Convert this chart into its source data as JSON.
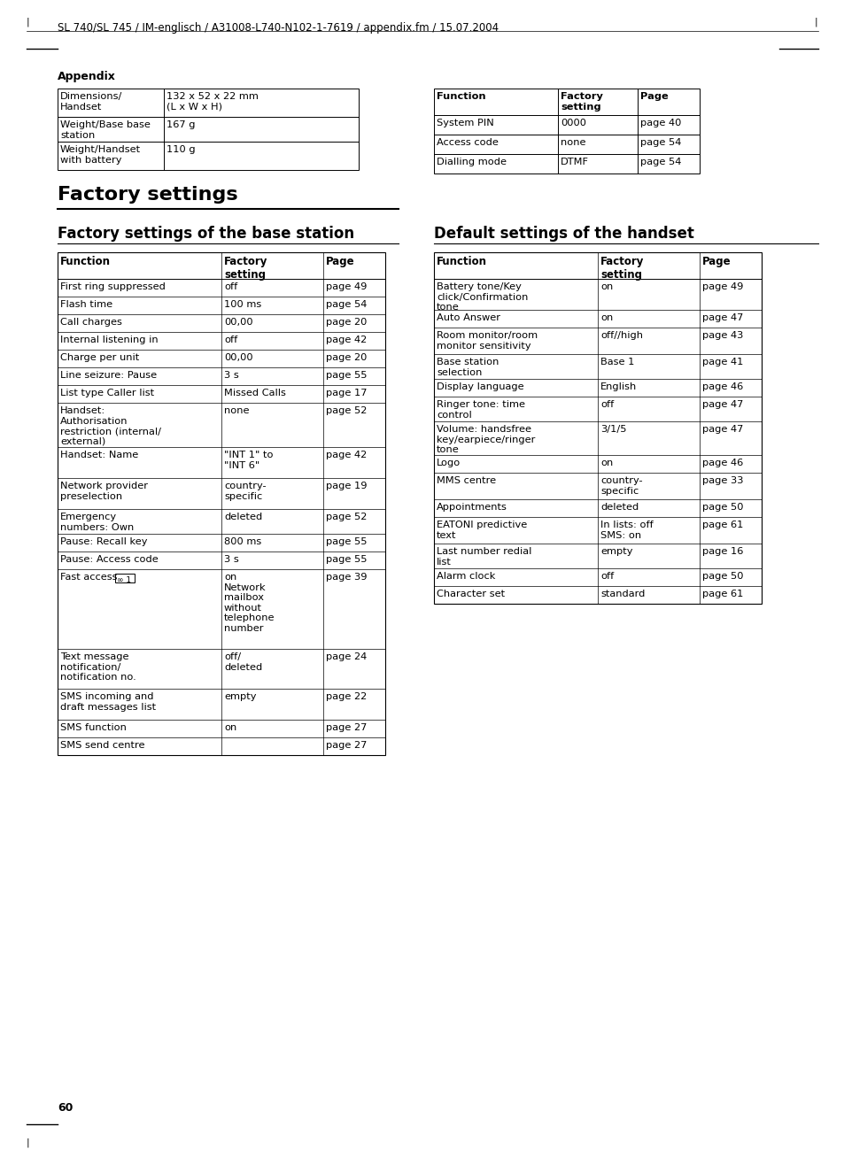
{
  "header_text": "SL 740/SL 745 / IM-englisch / A31008-L740-N102-1-7619 / appendix.fm / 15.07.2004",
  "section_label": "Appendix",
  "main_title": "Factory settings",
  "subtitle1": "Factory settings of the base station",
  "subtitle2": "Default settings of the handset",
  "page_number": "60",
  "top_table": {
    "rows": [
      [
        "Dimensions/\nHandset",
        "132 x 52 x 22 mm\n(L x W x H)"
      ],
      [
        "Weight/Base base\nstation",
        "167 g"
      ],
      [
        "Weight/Handset\nwith battery",
        "110 g"
      ]
    ]
  },
  "top_right_table": {
    "headers": [
      "Function",
      "Factory\nsetting",
      "Page"
    ],
    "rows": [
      [
        "System PIN",
        "0000",
        "page 40"
      ],
      [
        "Access code",
        "none",
        "page 54"
      ],
      [
        "Dialling mode",
        "DTMF",
        "page 54"
      ]
    ]
  },
  "base_table": {
    "headers": [
      "Function",
      "Factory\nsetting",
      "Page"
    ],
    "rows": [
      [
        "First ring suppressed",
        "off",
        "page 49"
      ],
      [
        "Flash time",
        "100 ms",
        "page 54"
      ],
      [
        "Call charges",
        "00,00",
        "page 20"
      ],
      [
        "Internal listening in",
        "off",
        "page 42"
      ],
      [
        "Charge per unit",
        "00,00",
        "page 20"
      ],
      [
        "Line seizure: Pause",
        "3 s",
        "page 55"
      ],
      [
        "List type Caller list",
        "Missed Calls",
        "page 17"
      ],
      [
        "Handset:\nAuthorisation\nrestriction (internal/\nexternal)",
        "none",
        "page 52"
      ],
      [
        "Handset: Name",
        "\"INT 1\" to\n\"INT 6\"",
        "page 42"
      ],
      [
        "Network provider\npreselection",
        "country-\nspecific",
        "page 19"
      ],
      [
        "Emergency\nnumbers: Own",
        "deleted",
        "page 52"
      ],
      [
        "Pause: Recall key",
        "800 ms",
        "page 55"
      ],
      [
        "Pause: Access code",
        "3 s",
        "page 55"
      ],
      [
        "Fast access ∞ 1",
        "on\nNetwork\nmailbox\nwithout\ntelephone\nnumber",
        "page 39"
      ],
      [
        "Text message\nnotification/\nnotification no.",
        "off/\ndeleted",
        "page 24"
      ],
      [
        "SMS incoming and\ndraft messages list",
        "empty",
        "page 22"
      ],
      [
        "SMS function",
        "on",
        "page 27"
      ],
      [
        "SMS send centre",
        "",
        "page 27"
      ]
    ]
  },
  "handset_table": {
    "headers": [
      "Function",
      "Factory\nsetting",
      "Page"
    ],
    "rows": [
      [
        "Battery tone/Key\nclick/Confirmation\ntone",
        "on",
        "page 49"
      ],
      [
        "Auto Answer",
        "on",
        "page 47"
      ],
      [
        "Room monitor/room\nmonitor sensitivity",
        "off//high",
        "page 43"
      ],
      [
        "Base station\nselection",
        "Base 1",
        "page 41"
      ],
      [
        "Display language",
        "English",
        "page 46"
      ],
      [
        "Ringer tone: time\ncontrol",
        "off",
        "page 47"
      ],
      [
        "Volume: handsfree\nkey/earpiece/ringer\ntone",
        "3/1/5",
        "page 47"
      ],
      [
        "Logo",
        "on",
        "page 46"
      ],
      [
        "MMS centre",
        "country-\nspecific",
        "page 33"
      ],
      [
        "Appointments",
        "deleted",
        "page 50"
      ],
      [
        "EATONI predictive\ntext",
        "In lists: off\nSMS: on",
        "page 61"
      ],
      [
        "Last number redial\nlist",
        "empty",
        "page 16"
      ],
      [
        "Alarm clock",
        "off",
        "page 50"
      ],
      [
        "Character set",
        "standard",
        "page 61"
      ]
    ]
  }
}
